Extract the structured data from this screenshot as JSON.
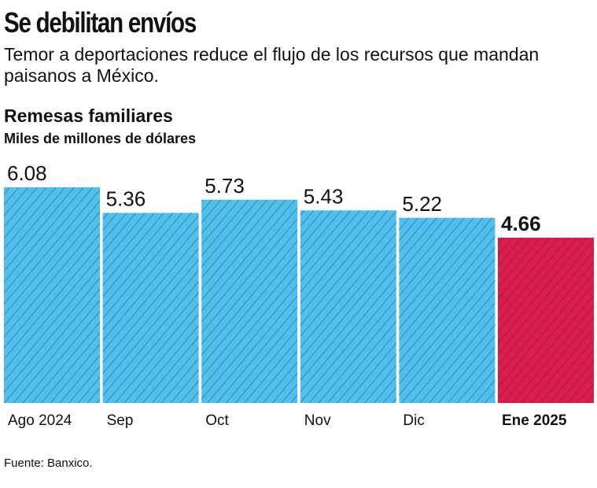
{
  "title": "Se debilitan envíos",
  "subtitle": "Temor a deportaciones reduce el flujo de los recursos que mandan paisanos a México.",
  "source": "Fuente: Banxico.",
  "colors": {
    "bar": "#4fbfee",
    "highlight": "#dc1c4b",
    "hatch": "#1a3550"
  },
  "chart_data": {
    "type": "bar",
    "title": "Remesas familiares",
    "ylabel": "Miles de millones de dólares",
    "categories": [
      "Ago 2024",
      "Sep",
      "Oct",
      "Nov",
      "Dic",
      "Ene 2025"
    ],
    "values": [
      6.08,
      5.36,
      5.73,
      5.43,
      5.22,
      4.66
    ],
    "value_labels": [
      "6.08",
      "5.36",
      "5.73",
      "5.43",
      "5.22",
      "4.66"
    ],
    "highlight_index": 5,
    "ylim": [
      0,
      6.08
    ],
    "grid": false
  }
}
